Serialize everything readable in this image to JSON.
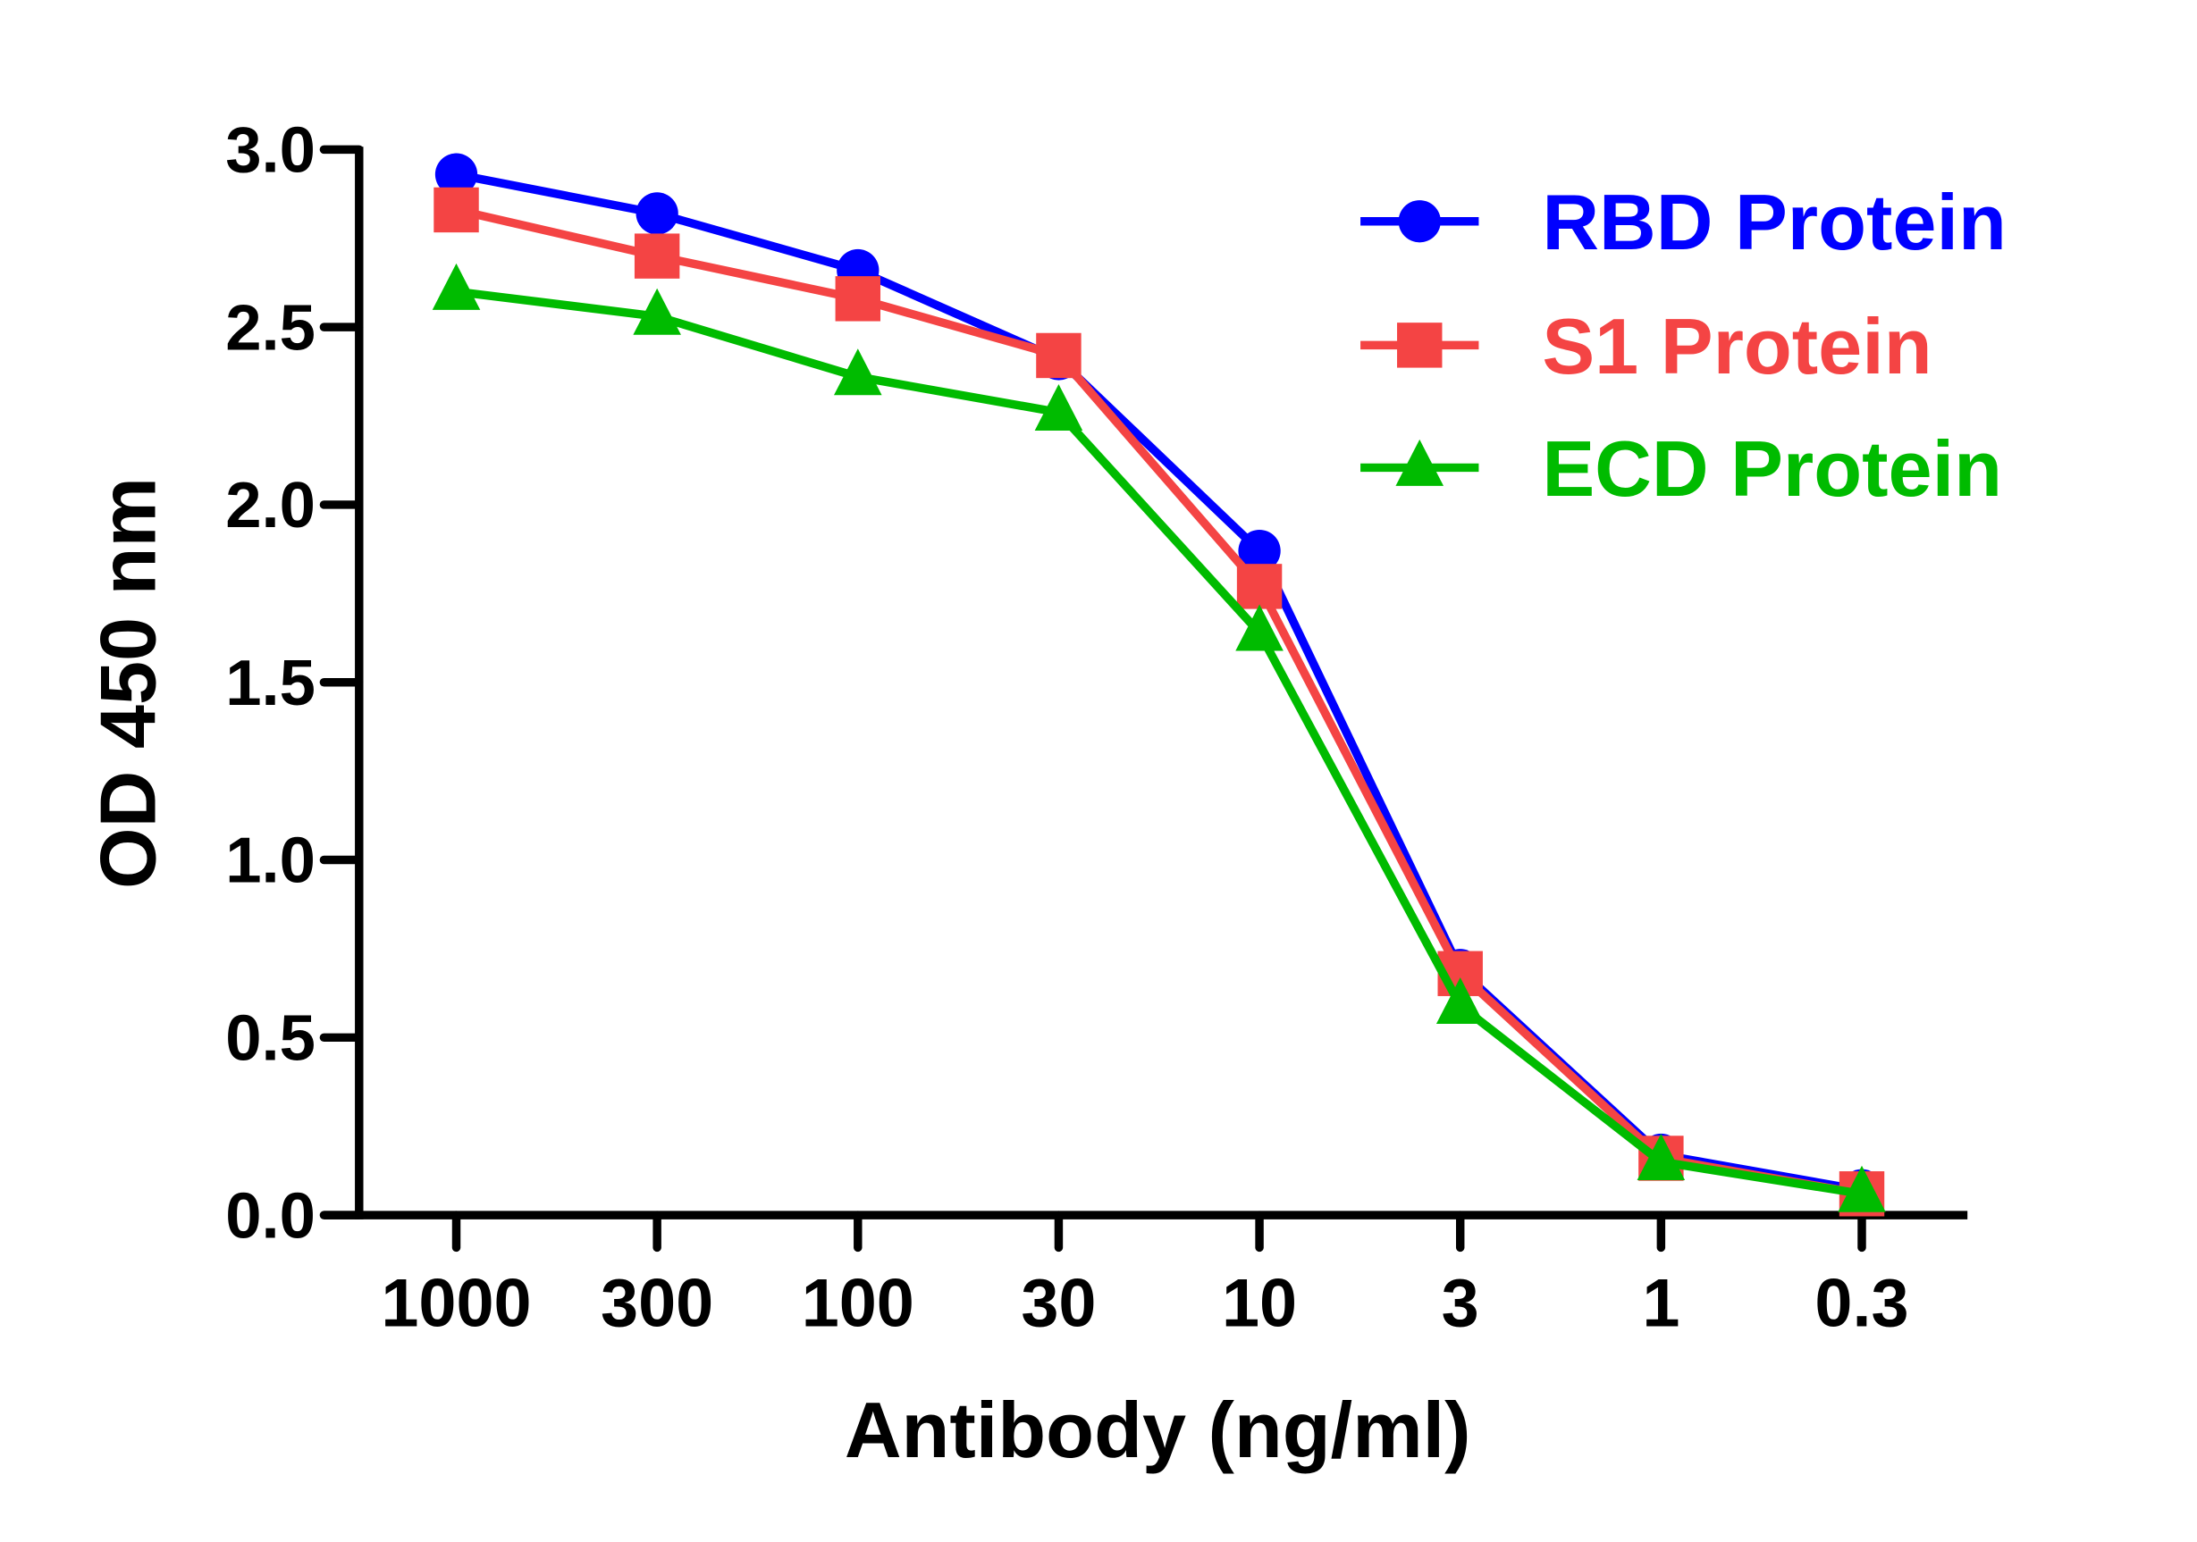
{
  "chart_data": {
    "type": "line",
    "title": "",
    "xlabel": "Antibody (ng/ml)",
    "ylabel": "OD 450 nm",
    "categories": [
      "1000",
      "300",
      "100",
      "30",
      "10",
      "3",
      "1",
      "0.3"
    ],
    "ylim": [
      0,
      3.0
    ],
    "yticks": [
      "0.0",
      "0.5",
      "1.0",
      "1.5",
      "2.0",
      "2.5",
      "3.0"
    ],
    "grid": false,
    "legend_placement": "top-right",
    "series": [
      {
        "name": "RBD Protein",
        "color": "#0000FF",
        "marker": "circle",
        "values": [
          2.93,
          2.82,
          2.66,
          2.41,
          1.87,
          0.69,
          0.17,
          0.07
        ]
      },
      {
        "name": "S1 Protein",
        "color": "#F44444",
        "marker": "square",
        "values": [
          2.83,
          2.7,
          2.58,
          2.42,
          1.77,
          0.68,
          0.16,
          0.06
        ]
      },
      {
        "name": "ECD Protein",
        "color": "#00BB00",
        "marker": "triangle",
        "values": [
          2.6,
          2.53,
          2.36,
          2.26,
          1.64,
          0.59,
          0.15,
          0.06
        ]
      }
    ]
  }
}
